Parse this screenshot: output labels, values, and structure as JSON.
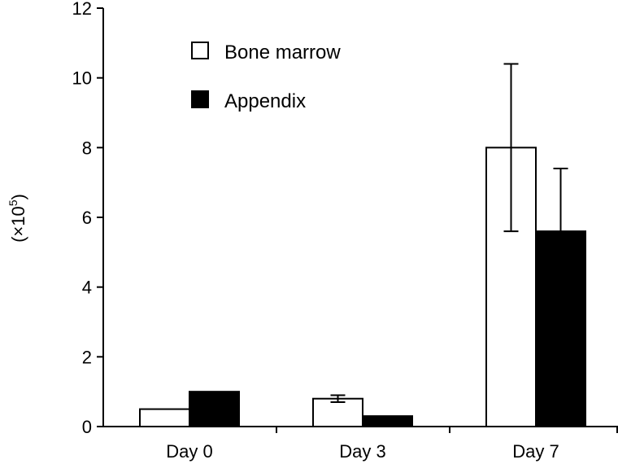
{
  "chart_data": {
    "type": "bar",
    "categories": [
      "Day 0",
      "Day 3",
      "Day 7"
    ],
    "series": [
      {
        "name": "Bone marrow",
        "values": [
          0.5,
          0.8,
          8.0
        ],
        "error": [
          0,
          0.1,
          2.4
        ],
        "fill": "#ffffff"
      },
      {
        "name": "Appendix",
        "values": [
          1.0,
          0.3,
          5.6
        ],
        "error": [
          0,
          0,
          1.8
        ],
        "fill": "#000000"
      }
    ],
    "ylabel": {
      "prefix": "(×10",
      "exponent": "5",
      "suffix": ")"
    },
    "ylim": [
      0,
      12
    ],
    "yticks": [
      "0",
      "2",
      "4",
      "6",
      "8",
      "10",
      "12"
    ],
    "grid": false,
    "legend_position": "top-left"
  },
  "colors": {
    "axis": "#000000",
    "bar_outline": "#000000"
  }
}
